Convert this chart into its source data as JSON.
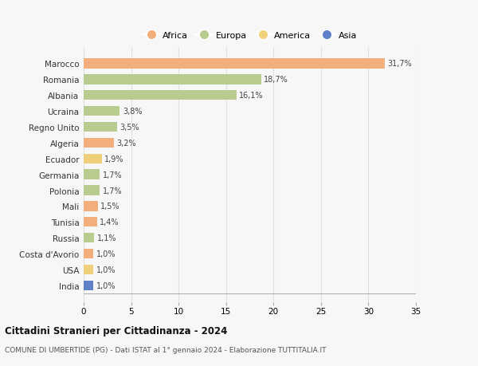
{
  "countries": [
    "Marocco",
    "Romania",
    "Albania",
    "Ucraina",
    "Regno Unito",
    "Algeria",
    "Ecuador",
    "Germania",
    "Polonia",
    "Mali",
    "Tunisia",
    "Russia",
    "Costa d'Avorio",
    "USA",
    "India"
  ],
  "values": [
    31.7,
    18.7,
    16.1,
    3.8,
    3.5,
    3.2,
    1.9,
    1.7,
    1.7,
    1.5,
    1.4,
    1.1,
    1.0,
    1.0,
    1.0
  ],
  "labels": [
    "31,7%",
    "18,7%",
    "16,1%",
    "3,8%",
    "3,5%",
    "3,2%",
    "1,9%",
    "1,7%",
    "1,7%",
    "1,5%",
    "1,4%",
    "1,1%",
    "1,0%",
    "1,0%",
    "1,0%"
  ],
  "continents": [
    "Africa",
    "Europa",
    "Europa",
    "Europa",
    "Europa",
    "Africa",
    "America",
    "Europa",
    "Europa",
    "Africa",
    "Africa",
    "Europa",
    "Africa",
    "America",
    "Asia"
  ],
  "continent_colors": {
    "Africa": "#F2AE7B",
    "Europa": "#B8CC90",
    "America": "#F0D07A",
    "Asia": "#6080C8"
  },
  "legend_order": [
    "Africa",
    "Europa",
    "America",
    "Asia"
  ],
  "title1": "Cittadini Stranieri per Cittadinanza - 2024",
  "title2": "COMUNE DI UMBERTIDE (PG) - Dati ISTAT al 1° gennaio 2024 - Elaborazione TUTTITALIA.IT",
  "xlim": [
    0,
    35
  ],
  "xticks": [
    0,
    5,
    10,
    15,
    20,
    25,
    30,
    35
  ],
  "bg_color": "#f7f7f7",
  "grid_color": "#e0e0e0"
}
